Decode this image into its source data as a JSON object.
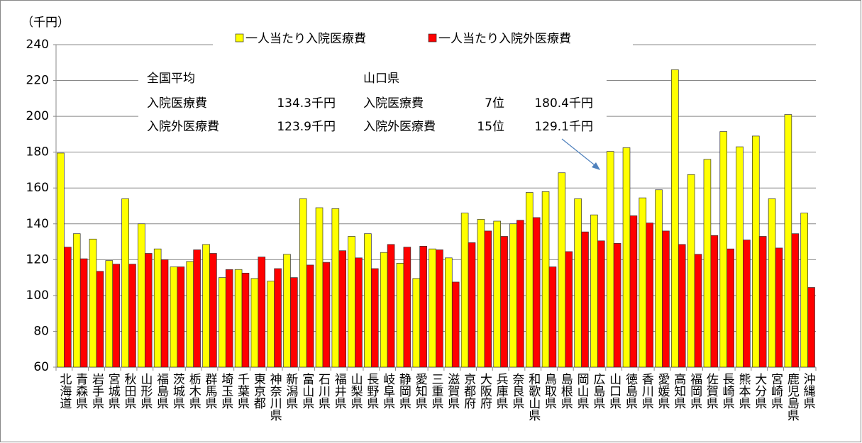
{
  "chart_data": {
    "type": "bar",
    "ylabel": "（千円）",
    "categories": [
      "北海道",
      "青森県",
      "岩手県",
      "宮城県",
      "秋田県",
      "山形県",
      "福島県",
      "茨城県",
      "栃木県",
      "群馬県",
      "埼玉県",
      "千葉県",
      "東京都",
      "神奈川県",
      "新潟県",
      "富山県",
      "石川県",
      "福井県",
      "山梨県",
      "長野県",
      "岐阜県",
      "静岡県",
      "愛知県",
      "三重県",
      "滋賀県",
      "京都府",
      "大阪府",
      "兵庫県",
      "奈良県",
      "和歌山県",
      "鳥取県",
      "島根県",
      "岡山県",
      "広島県",
      "山口県",
      "徳島県",
      "香川県",
      "愛媛県",
      "高知県",
      "福岡県",
      "佐賀県",
      "長崎県",
      "熊本県",
      "大分県",
      "宮崎県",
      "鹿児島県",
      "沖縄県"
    ],
    "series": [
      {
        "name": "一人当たり入院医療費",
        "color": "#ffff00",
        "values": [
          179.5,
          134.5,
          131.5,
          119.5,
          154,
          140,
          126,
          116,
          119,
          128.5,
          110,
          114.5,
          109.5,
          108,
          123,
          154,
          149,
          148.5,
          133,
          134.5,
          124,
          118,
          109.5,
          126,
          121,
          146,
          142.5,
          141.5,
          140,
          157.5,
          158,
          168.5,
          154,
          145,
          180.4,
          182.5,
          154.5,
          159,
          226,
          167.5,
          176,
          191.5,
          183,
          189,
          154,
          201,
          146
        ]
      },
      {
        "name": "一人当たり入院外医療費",
        "color": "#ff0000",
        "values": [
          127,
          120.5,
          113.5,
          117.5,
          117.5,
          123.5,
          120,
          116,
          125.5,
          123.5,
          114.5,
          112.5,
          121.5,
          115,
          110,
          117,
          118.5,
          125,
          121,
          115,
          128.5,
          127,
          127.5,
          125.5,
          107.5,
          129.5,
          136,
          133,
          142,
          143.5,
          116,
          124.5,
          135.5,
          130.5,
          129.1,
          144.5,
          140.5,
          136,
          128.5,
          123,
          133.5,
          126,
          131,
          133,
          126.5,
          134.5,
          104.5
        ]
      }
    ],
    "ylim": [
      60,
      240
    ],
    "yticks": [
      60,
      80,
      100,
      120,
      140,
      160,
      180,
      200,
      220,
      240
    ],
    "grid": true,
    "annotations": {
      "national": {
        "title": "全国平均",
        "rows": [
          [
            "入院医療費",
            "134.3千円"
          ],
          [
            "入院外医療費",
            "123.9千円"
          ]
        ]
      },
      "yamaguchi": {
        "title": "山口県",
        "rows": [
          [
            "入院医療費",
            "7位",
            "180.4千円"
          ],
          [
            "入院外医療費",
            "15位",
            "129.1千円"
          ]
        ]
      }
    }
  }
}
